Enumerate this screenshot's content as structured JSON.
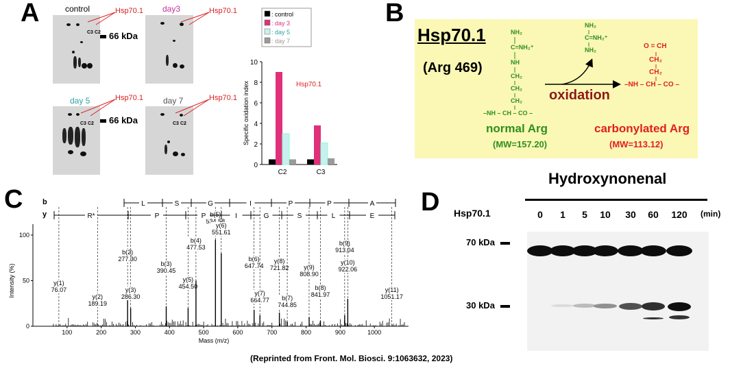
{
  "panels": {
    "a_label": "A",
    "b_label": "B",
    "c_label": "C",
    "d_label": "D"
  },
  "panelA": {
    "gel_titles": [
      "control",
      "day3",
      "day 5",
      "day 7"
    ],
    "gel_title_colors": [
      "#000000",
      "#c0309a",
      "#2fa0a8",
      "#555555"
    ],
    "hsp_label": "Hsp70.1",
    "kda_label": "66 kDa",
    "spot_labels": [
      "C3",
      "C2"
    ]
  },
  "chart_data": {
    "type": "bar",
    "categories": [
      "C2",
      "C3"
    ],
    "series": [
      {
        "name": ": control",
        "values": [
          0.5,
          0.5
        ],
        "color": "#000000"
      },
      {
        "name": ": day 3",
        "values": [
          9.0,
          3.8
        ],
        "color": "#e0307a"
      },
      {
        "name": ": day 5",
        "values": [
          3.0,
          2.1
        ],
        "color": "#c8f0f0"
      },
      {
        "name": ": day 7",
        "values": [
          0.5,
          0.6
        ],
        "color": "#9a9a9a"
      }
    ],
    "title": "",
    "annotation": "Hsp70.1",
    "xlabel": "",
    "ylabel": "Specific oxidation index",
    "ylim": [
      0,
      10
    ],
    "yticks": [
      0,
      2,
      4,
      6,
      8,
      10
    ],
    "legend": "top"
  },
  "panelB": {
    "protein": "Hsp70.1",
    "residue": "(Arg 469)",
    "arrow_label": "oxidation",
    "normal_name": "normal Arg",
    "normal_mw": "(MW=157.20)",
    "carb_name": "carbonylated Arg",
    "carb_mw": "(MW=113.12)",
    "normal_struct": [
      "NH₂",
      "C=NH₂⁺",
      "NH",
      "CH₂",
      "CH₂",
      "CH₂",
      "–NH – CH – CO –"
    ],
    "leaving_group": [
      "NH₂",
      "C=NH₂⁺",
      "NH₂"
    ],
    "carb_struct": [
      "O = CH",
      "CH₂",
      "CH₂",
      "–NH – CH – CO –"
    ]
  },
  "panelC": {
    "b_row": "b",
    "y_row": "y",
    "b_seq": [
      "L",
      "S",
      "G",
      "I",
      "P",
      "P",
      "A"
    ],
    "y_seq": [
      "R*",
      "P",
      "P",
      "I",
      "G",
      "S",
      "L",
      "E"
    ],
    "ylabel": "Intensity (%)",
    "xlabel": "Mass (m/z)",
    "xticks": [
      "100",
      "200",
      "300",
      "400",
      "500",
      "600",
      "700",
      "800",
      "900",
      "1000"
    ],
    "yticks": [
      "0",
      "50",
      "100"
    ],
    "peaks": [
      {
        "ion": "y(1)",
        "mz": "76.07",
        "mass": 76.07,
        "int": 0
      },
      {
        "ion": "y(2)",
        "mz": "189.19",
        "mass": 189.19,
        "int": 0
      },
      {
        "ion": "b(2)",
        "mz": "277.30",
        "mass": 277.3,
        "int": 35
      },
      {
        "ion": "y(3)",
        "mz": "286.30",
        "mass": 286.3,
        "int": 20
      },
      {
        "ion": "b(3)",
        "mz": "390.45",
        "mass": 390.45,
        "int": 22
      },
      {
        "ion": "y(5)",
        "mz": "454.50",
        "mass": 454.5,
        "int": 20
      },
      {
        "ion": "b(4)",
        "mz": "477.53",
        "mass": 477.53,
        "int": 50
      },
      {
        "ion": "b(5)",
        "mz": "534.58",
        "mass": 534.58,
        "int": 95
      },
      {
        "ion": "y(6)",
        "mz": "551.61",
        "mass": 551.61,
        "int": 80
      },
      {
        "ion": "b(6)",
        "mz": "647.74",
        "mass": 647.74,
        "int": 18
      },
      {
        "ion": "y(7)",
        "mz": "664.77",
        "mass": 664.77,
        "int": 12
      },
      {
        "ion": "y(8)",
        "mz": "721.82",
        "mass": 721.82,
        "int": 15
      },
      {
        "ion": "b(7)",
        "mz": "744.85",
        "mass": 744.85,
        "int": 5
      },
      {
        "ion": "y(9)",
        "mz": "808.90",
        "mass": 808.9,
        "int": 10
      },
      {
        "ion": "b(8)",
        "mz": "841.97",
        "mass": 841.97,
        "int": 6
      },
      {
        "ion": "b(9)",
        "mz": "913.04",
        "mass": 913.04,
        "int": 12
      },
      {
        "ion": "y(10)",
        "mz": "922.06",
        "mass": 922.06,
        "int": 30
      },
      {
        "ion": "y(11)",
        "mz": "1051.17",
        "mass": 1051.17,
        "int": 0
      }
    ]
  },
  "panelD": {
    "title": "Hydroxynonenal",
    "row_label": "Hsp70.1",
    "timepoints": [
      "0",
      "1",
      "5",
      "10",
      "30",
      "60",
      "120"
    ],
    "unit": "(min)",
    "kda70": "70 kDa",
    "kda30": "30 kDa",
    "band30_intensity": [
      0.0,
      0.05,
      0.2,
      0.4,
      0.7,
      0.85,
      1.0
    ]
  },
  "citation": "(Reprinted from Front. Mol. Biosci. 9:1063632, 2023)"
}
